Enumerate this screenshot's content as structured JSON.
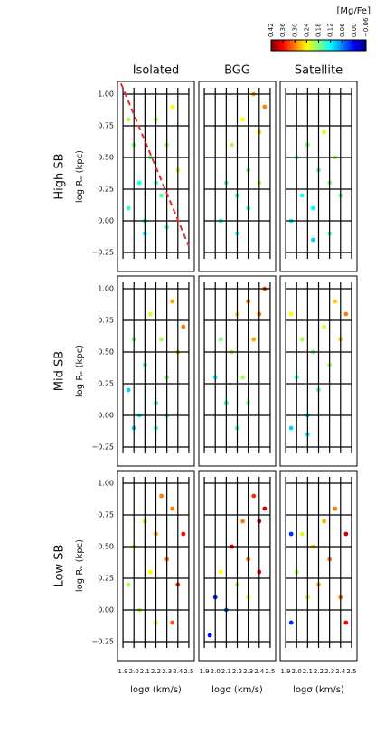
{
  "chart_data": {
    "type": "scatter",
    "columns": [
      "Isolated",
      "BGG",
      "Satellite"
    ],
    "rows": [
      "High SB",
      "Mid SB",
      "Low SB"
    ],
    "xlabel": "logσ (km/s)",
    "ylabel": "log Rₑ (kpc)",
    "xlim": [
      1.85,
      2.55
    ],
    "ylim": [
      -0.4,
      1.1
    ],
    "xticks": [
      1.9,
      {
        "value": 2,
        "label": "2.0"
      },
      2.1,
      2.2,
      2.3,
      2.4,
      2.5
    ],
    "yticks": [
      {
        "value": 1,
        "label": "1.00"
      },
      0.75,
      {
        "value": 0.5,
        "label": "0.50"
      },
      0.25,
      {
        "value": 0,
        "label": "0.00"
      },
      {
        "value": -0.25,
        "label": "−0.25"
      }
    ],
    "grid": true,
    "colorbar": {
      "label": "[Mg/Fe]",
      "colormap": "jet",
      "lim": [
        -0.06,
        0.42
      ],
      "ticks": [
        0.42,
        0.36,
        {
          "value": 0.3,
          "label": "0.30"
        },
        0.24,
        0.18,
        0.12,
        0.06,
        {
          "value": 0,
          "label": "0.00"
        },
        {
          "value": -0.06,
          "label": "−0.06"
        }
      ]
    },
    "reference_line": {
      "x": [
        1.85,
        2.5
      ],
      "y": [
        1.15,
        -0.2
      ],
      "color": "#e03030"
    },
    "panels": [
      {
        "x": [
          1.95,
          2.0,
          2.05,
          2.1,
          2.15,
          2.2,
          2.25,
          2.3,
          2.35,
          2.4,
          2.1,
          2.2,
          2.3,
          1.95
        ],
        "y": [
          0.1,
          0.6,
          0.3,
          0.0,
          0.5,
          0.8,
          0.2,
          0.6,
          0.9,
          0.4,
          -0.1,
          0.3,
          -0.05,
          0.8
        ],
        "c": [
          0.14,
          0.18,
          0.13,
          0.12,
          0.17,
          0.2,
          0.16,
          0.2,
          0.24,
          0.22,
          0.11,
          0.15,
          0.16,
          0.2
        ]
      },
      {
        "x": [
          2.05,
          2.1,
          2.15,
          2.2,
          2.25,
          2.3,
          2.35,
          2.4,
          2.45,
          2.2,
          2.3,
          2.4
        ],
        "y": [
          0.0,
          0.3,
          0.6,
          0.2,
          0.8,
          0.4,
          1.0,
          0.7,
          0.9,
          -0.1,
          0.1,
          0.3
        ],
        "c": [
          0.14,
          0.16,
          0.2,
          0.14,
          0.24,
          0.18,
          0.28,
          0.26,
          0.3,
          0.12,
          0.15,
          0.2
        ]
      },
      {
        "x": [
          1.95,
          2.0,
          2.05,
          2.1,
          2.15,
          2.2,
          2.25,
          2.3,
          2.35,
          2.4,
          2.15,
          2.3
        ],
        "y": [
          0.0,
          0.5,
          0.2,
          0.6,
          0.1,
          0.4,
          0.7,
          0.3,
          0.5,
          0.2,
          -0.15,
          -0.1
        ],
        "c": [
          0.12,
          0.16,
          0.13,
          0.18,
          0.12,
          0.16,
          0.22,
          0.18,
          0.2,
          0.18,
          0.1,
          0.14
        ]
      },
      {
        "x": [
          1.95,
          2.0,
          2.05,
          2.1,
          2.15,
          2.2,
          2.25,
          2.3,
          2.35,
          2.4,
          2.45,
          2.0,
          2.2,
          2.3
        ],
        "y": [
          0.2,
          0.6,
          0.0,
          0.4,
          0.8,
          0.1,
          0.6,
          0.3,
          0.9,
          0.5,
          0.7,
          -0.1,
          -0.1,
          0.0
        ],
        "c": [
          0.1,
          0.18,
          0.12,
          0.16,
          0.22,
          0.15,
          0.2,
          0.18,
          0.28,
          0.26,
          0.3,
          0.1,
          0.14,
          0.16
        ]
      },
      {
        "x": [
          2.0,
          2.05,
          2.1,
          2.15,
          2.2,
          2.25,
          2.3,
          2.35,
          2.4,
          2.45,
          2.3,
          2.2
        ],
        "y": [
          0.3,
          0.6,
          0.1,
          0.5,
          0.8,
          0.3,
          0.9,
          0.6,
          0.8,
          1.0,
          0.1,
          -0.1
        ],
        "c": [
          0.12,
          0.18,
          0.14,
          0.2,
          0.26,
          0.2,
          0.3,
          0.28,
          0.3,
          0.32,
          0.18,
          0.15
        ]
      },
      {
        "x": [
          1.95,
          2.0,
          2.05,
          2.1,
          2.15,
          2.2,
          2.25,
          2.3,
          2.35,
          2.4,
          2.45,
          1.95,
          2.1
        ],
        "y": [
          0.8,
          0.3,
          0.6,
          0.0,
          0.5,
          0.2,
          0.7,
          0.4,
          0.9,
          0.6,
          0.8,
          -0.1,
          -0.15
        ],
        "c": [
          0.24,
          0.14,
          0.2,
          0.12,
          0.18,
          0.16,
          0.22,
          0.2,
          0.26,
          0.26,
          0.3,
          0.1,
          0.12
        ]
      },
      {
        "x": [
          1.95,
          2.0,
          2.05,
          2.1,
          2.15,
          2.2,
          2.25,
          2.3,
          2.35,
          2.4,
          2.45,
          2.35,
          2.2
        ],
        "y": [
          0.2,
          0.5,
          0.0,
          0.7,
          0.3,
          0.6,
          0.9,
          0.4,
          0.8,
          0.2,
          0.6,
          -0.1,
          -0.1
        ],
        "c": [
          0.2,
          0.22,
          0.2,
          0.26,
          0.24,
          0.28,
          0.3,
          0.3,
          0.3,
          0.34,
          0.36,
          0.32,
          0.22
        ]
      },
      {
        "x": [
          1.95,
          2.0,
          2.05,
          2.1,
          2.15,
          2.2,
          2.25,
          2.3,
          2.35,
          2.4,
          2.45,
          2.3,
          2.4
        ],
        "y": [
          -0.2,
          0.1,
          0.3,
          0.0,
          0.5,
          0.2,
          0.7,
          0.4,
          0.9,
          0.7,
          0.8,
          0.1,
          0.3
        ],
        "c": [
          0.0,
          0.02,
          0.24,
          0.06,
          0.36,
          0.2,
          0.3,
          0.3,
          0.34,
          0.38,
          0.38,
          0.22,
          0.36
        ]
      },
      {
        "x": [
          1.95,
          2.0,
          2.05,
          2.1,
          2.15,
          2.2,
          2.25,
          2.3,
          2.35,
          2.4,
          2.45,
          1.95,
          2.45
        ],
        "y": [
          -0.1,
          0.3,
          0.6,
          0.1,
          0.5,
          0.2,
          0.7,
          0.4,
          0.8,
          0.1,
          0.6,
          0.6,
          -0.1
        ],
        "c": [
          0.02,
          0.2,
          0.22,
          0.22,
          0.26,
          0.28,
          0.28,
          0.3,
          0.3,
          0.3,
          0.38,
          0.02,
          0.36
        ]
      }
    ]
  }
}
